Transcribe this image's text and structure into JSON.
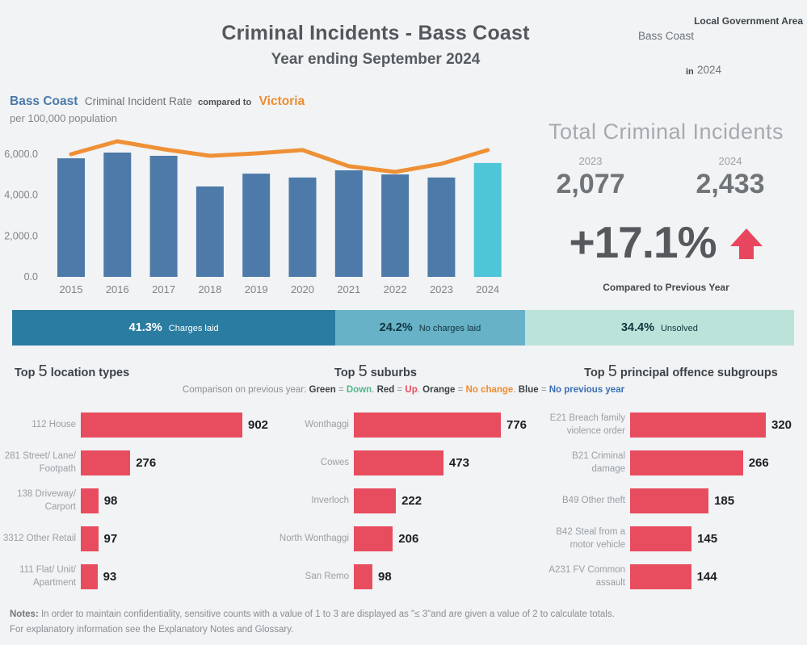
{
  "header": {
    "title": "Criminal Incidents - Bass Coast",
    "subtitle": "Year ending September 2024",
    "filter_label": "Local Government Area",
    "filter_value": "Bass Coast",
    "in_label": "in",
    "year_value": "2024"
  },
  "rate_title": {
    "area": "Bass Coast",
    "mid": "Criminal Incident Rate",
    "compared": "compared to",
    "state": "Victoria",
    "unit": "per 100,000 population"
  },
  "kpi": {
    "title": "Total Criminal Incidents",
    "year_prev": "2023",
    "year_curr": "2024",
    "value_prev": "2,077",
    "value_curr": "2,433",
    "values_num": [
      2077,
      2433
    ],
    "change": "+17.1%",
    "caption": "Compared to Previous Year"
  },
  "legend": {
    "prefix": "Comparison on previous year:",
    "entries": [
      {
        "key": "Green",
        "value": "Down",
        "color_ref": "legend_green"
      },
      {
        "key": "Red",
        "value": "Up",
        "color_ref": "legend_red"
      },
      {
        "key": "Orange",
        "value": "No change",
        "color_ref": "legend_orange"
      },
      {
        "key": "Blue",
        "value": "No previous year",
        "color_ref": "legend_blue"
      }
    ]
  },
  "notes": {
    "label": "Notes:",
    "line1": "In order to maintain confidentiality, sensitive counts with a value of 1 to 3 are displayed as \"≤ 3\"and are given a value of 2 to calculate totals.",
    "line2": "For explanatory information see the Explanatory Notes and Glossary."
  },
  "colors": {
    "bar_blue": "#4d7aa8",
    "bar_teal": "#4ec6d8",
    "line_orange": "#ef9036",
    "bar_red": "#e84c5f",
    "status_charges": "#2b7ca1",
    "status_no_charges": "#67b2c7",
    "status_unsolved": "#bce3da",
    "legend_green": "#52b68c",
    "legend_red": "#e84c5f",
    "legend_orange": "#ef8b2f",
    "legend_blue": "#3a6fb5",
    "kpi_arrow_red": "#e8465e",
    "accent_blue": "#4a79a9",
    "accent_orange": "#ef8b2f"
  },
  "chart_data": [
    {
      "id": "rate_trend",
      "type": "bar",
      "title": "Bass Coast Criminal Incident Rate compared to Victoria",
      "subtitle": "per 100,000 population",
      "categories": [
        "2015",
        "2016",
        "2017",
        "2018",
        "2019",
        "2020",
        "2021",
        "2022",
        "2023",
        "2024"
      ],
      "series": [
        {
          "name": "Bass Coast",
          "type": "bar",
          "values": [
            5800,
            6080,
            5920,
            4420,
            5050,
            4860,
            5210,
            5010,
            4860,
            5570
          ]
        },
        {
          "name": "Victoria",
          "type": "line",
          "values": [
            6000,
            6630,
            6240,
            5920,
            6040,
            6200,
            5410,
            5130,
            5530,
            6200
          ]
        }
      ],
      "ylim": [
        0,
        7000
      ],
      "yticks": [
        0,
        2000,
        4000,
        6000
      ],
      "ytick_labels": [
        "0.0",
        "2,000.0",
        "4,000.0",
        "6,000.0"
      ],
      "grid": false,
      "legend_position": "none",
      "highlight_last_bar": true
    },
    {
      "id": "investigation_status",
      "type": "bar",
      "subtype": "stacked_percent_horizontal",
      "segments": [
        {
          "value": 41.3,
          "pct_text": "41.3%",
          "label": "Charges laid"
        },
        {
          "value": 24.2,
          "pct_text": "24.2%",
          "label": "No charges laid"
        },
        {
          "value": 34.4,
          "pct_text": "34.4%",
          "label": "Unsolved"
        }
      ]
    },
    {
      "id": "top_location_types",
      "type": "bar",
      "orientation": "horizontal",
      "title_prefix": "Top",
      "title_big": "5",
      "title_suffix": "location types",
      "categories": [
        "112 House",
        "281 Street/ Lane/ Footpath",
        "138 Driveway/ Carport",
        "3312 Other Retail",
        "111 Flat/ Unit/ Apartment"
      ],
      "values": [
        902,
        276,
        98,
        97,
        93
      ]
    },
    {
      "id": "top_suburbs",
      "type": "bar",
      "orientation": "horizontal",
      "title_prefix": "Top",
      "title_big": "5",
      "title_suffix": "suburbs",
      "categories": [
        "Wonthaggi",
        "Cowes",
        "Inverloch",
        "North Wonthaggi",
        "San Remo"
      ],
      "values": [
        776,
        473,
        222,
        206,
        98
      ]
    },
    {
      "id": "top_principal_offence_subgroups",
      "type": "bar",
      "orientation": "horizontal",
      "title_prefix": "Top",
      "title_big": "5",
      "title_suffix": "principal offence subgroups",
      "categories": [
        "E21 Breach family violence order",
        "B21 Criminal damage",
        "B49 Other theft",
        "B42 Steal from a motor vehicle",
        "A231 FV Common assault"
      ],
      "values": [
        320,
        266,
        185,
        145,
        144
      ]
    }
  ]
}
